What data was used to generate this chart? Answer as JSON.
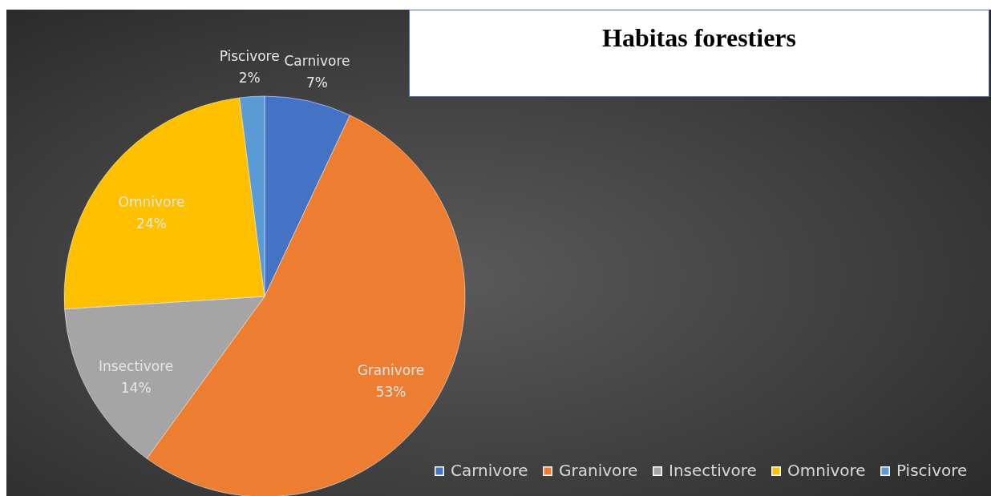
{
  "chart_data": {
    "type": "pie",
    "title": "Habitas forestiers",
    "categories": [
      "Carnivore",
      "Granivore",
      "Insectivore",
      "Omnivore",
      "Piscivore"
    ],
    "values": [
      7,
      53,
      14,
      24,
      2
    ],
    "colors": [
      "#4472c4",
      "#ed7d31",
      "#a5a5a5",
      "#ffc000",
      "#5b9bd5"
    ],
    "value_labels": [
      "7%",
      "53%",
      "14%",
      "24%",
      "2%"
    ],
    "legend": "bottom right"
  }
}
